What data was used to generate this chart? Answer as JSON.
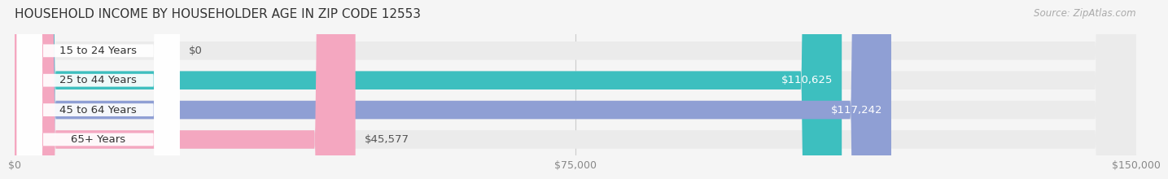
{
  "title": "HOUSEHOLD INCOME BY HOUSEHOLDER AGE IN ZIP CODE 12553",
  "source": "Source: ZipAtlas.com",
  "categories": [
    "15 to 24 Years",
    "25 to 44 Years",
    "45 to 64 Years",
    "65+ Years"
  ],
  "values": [
    0,
    110625,
    117242,
    45577
  ],
  "bar_colors": [
    "#c9aed6",
    "#3dbfbf",
    "#8f9fd4",
    "#f4a7c0"
  ],
  "label_colors": [
    "#888888",
    "#ffffff",
    "#ffffff",
    "#555555"
  ],
  "bar_labels": [
    "$0",
    "$110,625",
    "$117,242",
    "$45,577"
  ],
  "x_ticks": [
    0,
    75000,
    150000
  ],
  "x_tick_labels": [
    "$0",
    "$75,000",
    "$150,000"
  ],
  "xlim": [
    0,
    150000
  ],
  "background_color": "#f5f5f5",
  "bar_background_color": "#ebebeb",
  "bar_height": 0.62,
  "title_fontsize": 11,
  "source_fontsize": 8.5,
  "label_fontsize": 9.5,
  "tick_fontsize": 9
}
